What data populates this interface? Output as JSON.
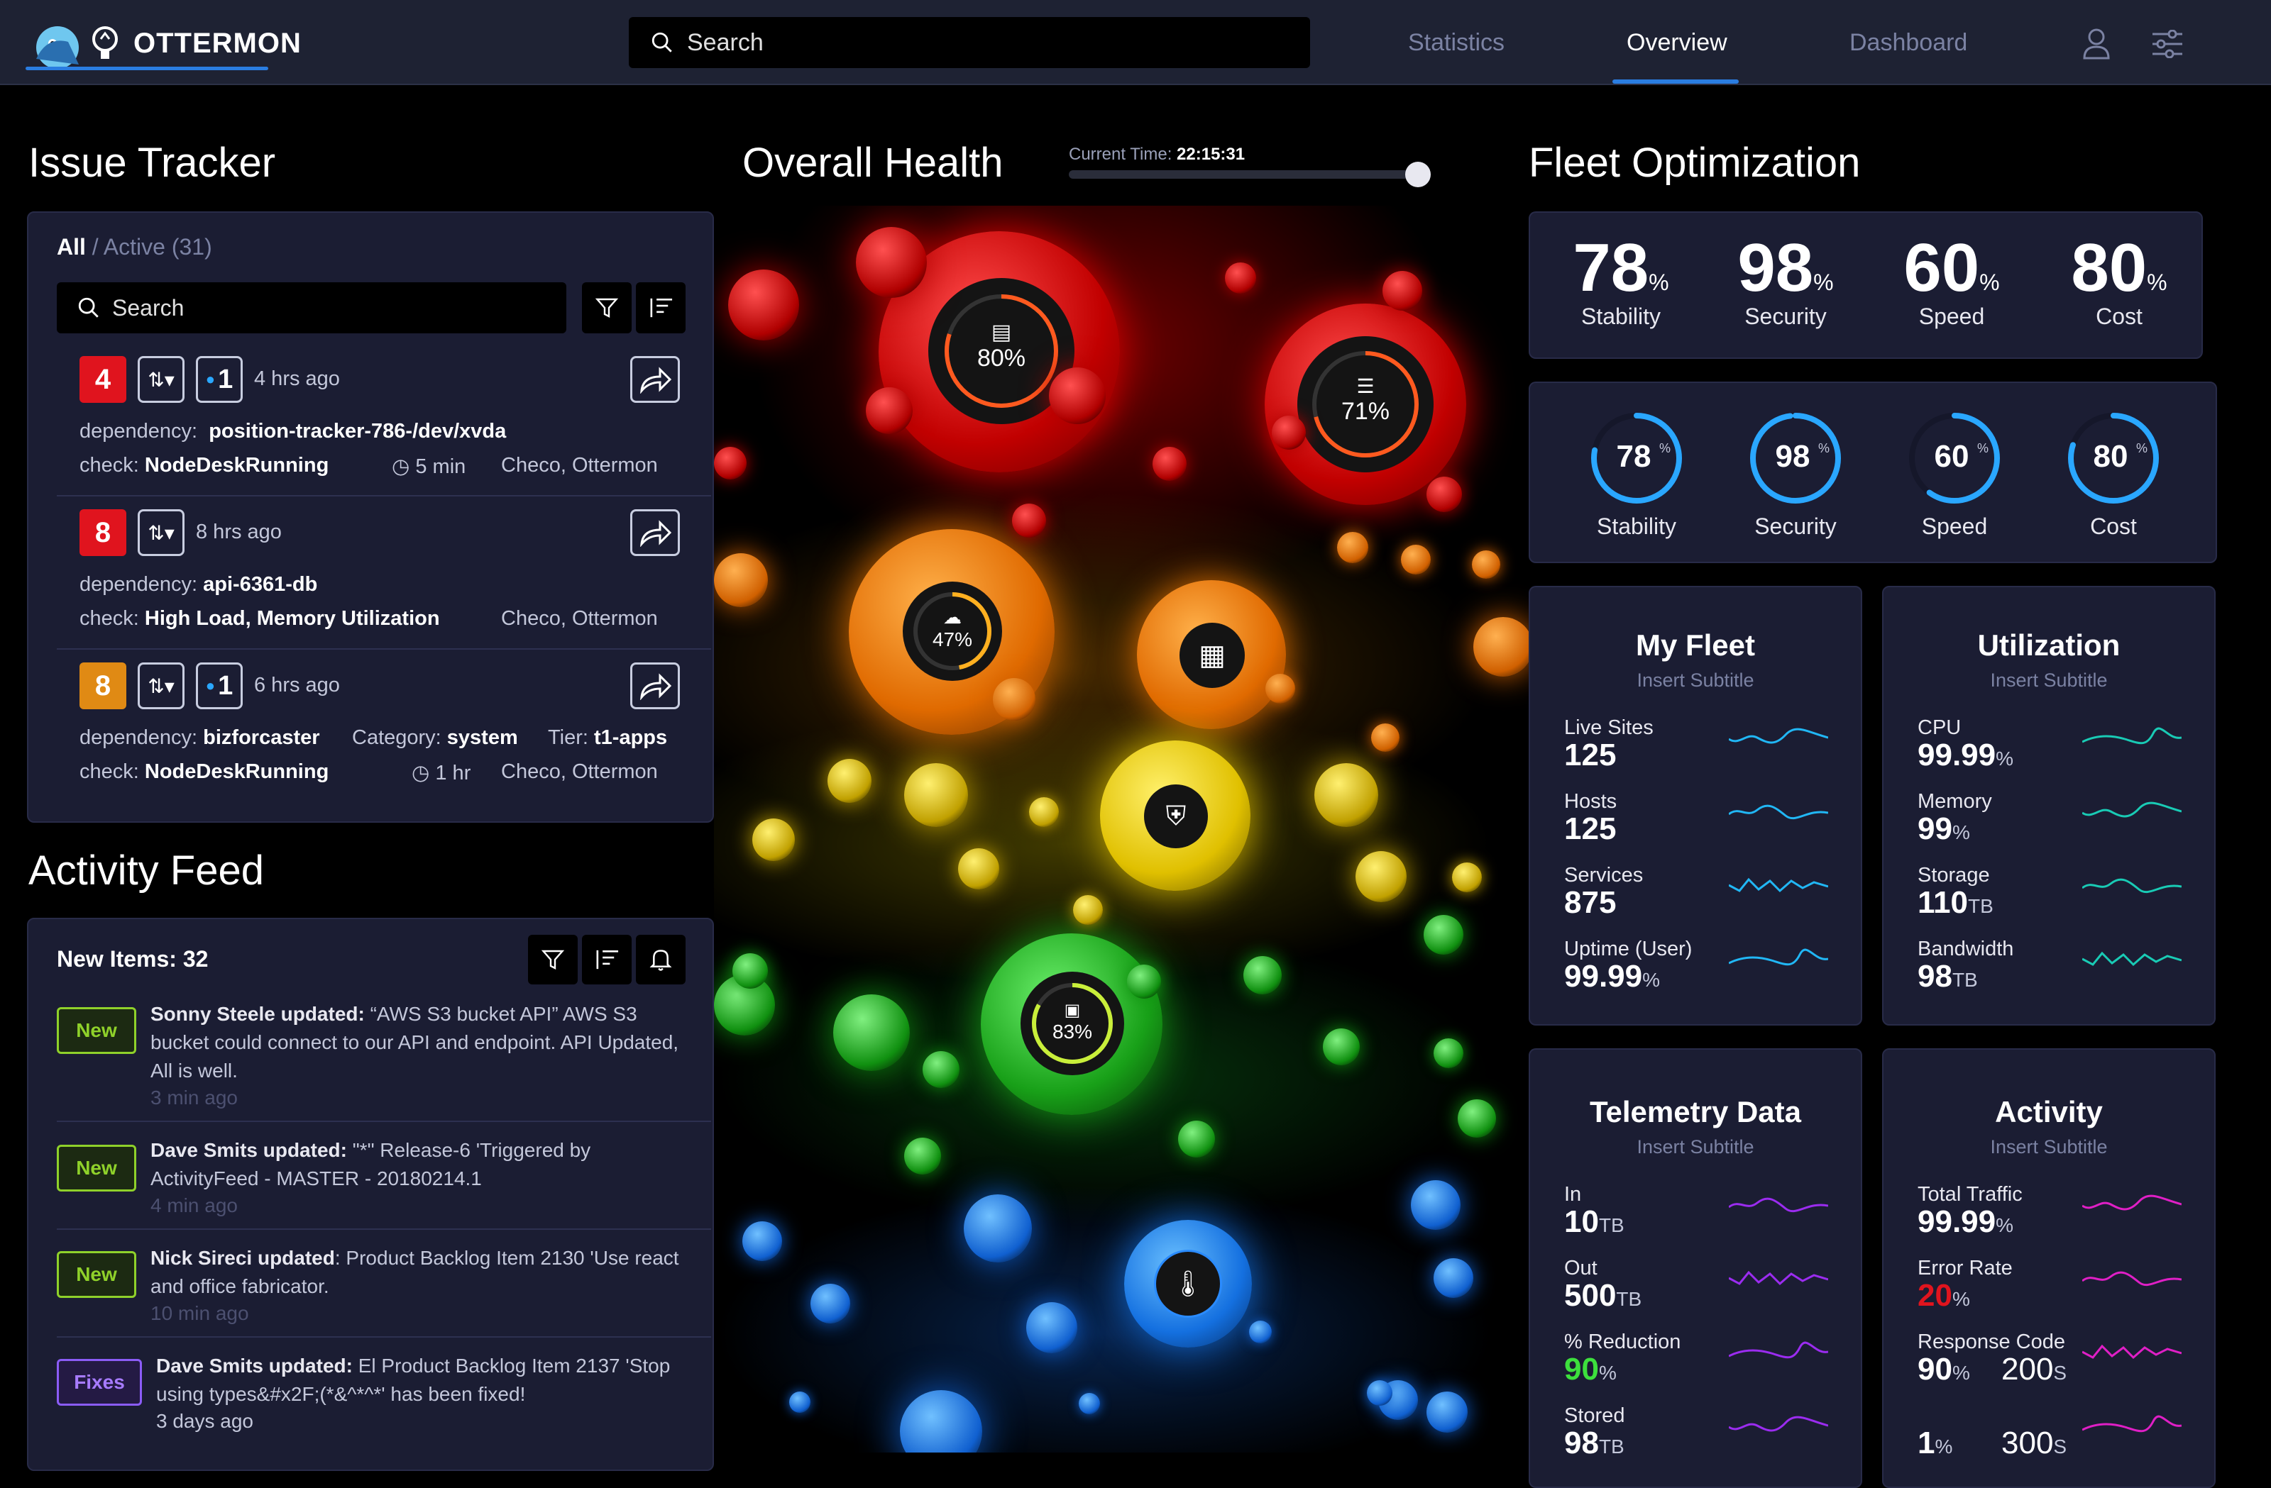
{
  "app": {
    "name": "OTTERMON"
  },
  "search": {
    "placeholder": "Search"
  },
  "nav": {
    "statistics": "Statistics",
    "overview": "Overview",
    "dashboard": "Dashboard"
  },
  "issue_tracker": {
    "title": "Issue Tracker",
    "filter_all": "All",
    "filter_sep": "/",
    "filter_active": "Active (31)",
    "search_placeholder": "Search",
    "issues": [
      {
        "severity": "4",
        "severity_color": "#e0141e",
        "count": "1",
        "time": "4 hrs ago",
        "dependency_label": "dependency:",
        "dependency": "position-tracker-786-/dev/xvda",
        "check_label": "check:",
        "check": "NodeDeskRunning",
        "duration": "5 min",
        "owners": "Checo, Ottermon"
      },
      {
        "severity": "8",
        "severity_color": "#e0141e",
        "time": "8 hrs ago",
        "dependency_label": "dependency:",
        "dependency": "api-6361-db",
        "check_label": "check:",
        "check": "High Load, Memory Utilization",
        "owners": "Checo, Ottermon"
      },
      {
        "severity": "8",
        "severity_color": "#e08a14",
        "count": "1",
        "time": "6 hrs ago",
        "dependency_label": "dependency:",
        "dependency": "bizforcaster",
        "category_label": "Category:",
        "category": "system",
        "tier_label": "Tier:",
        "tier": "t1-apps",
        "check_label": "check:",
        "check": "NodeDeskRunning",
        "duration": "1 hr",
        "owners": "Checo, Ottermon"
      }
    ]
  },
  "activity_feed": {
    "title": "Activity Feed",
    "new_items": "New Items: 32",
    "items": [
      {
        "tag": "New",
        "tag_color": "#8fd12a",
        "author": "Sonny Steele updated:",
        "text": " “AWS S3 bucket API” AWS S3 bucket could connect to our API and endpoint. API Updated, All is well.",
        "ago": "3 min ago"
      },
      {
        "tag": "New",
        "tag_color": "#8fd12a",
        "author": "Dave Smits updated:",
        "text": " \"*\" Release-6 'Triggered by ActivityFeed - MASTER - 20180214.1",
        "ago": "4 min ago"
      },
      {
        "tag": "New",
        "tag_color": "#8fd12a",
        "author": "Nick Sireci updated",
        "text": ": Product Backlog Item 2130 'Use react and office fabricator.",
        "ago": "10 min ago"
      },
      {
        "tag": "Fixes",
        "tag_color": "#8b5cf6",
        "author": "Dave Smits updated:",
        "text": " El Product Backlog Item 2137 'Stop using types&#x2F;(*&^*^*' has been fixed!",
        "ago": "3 days ago"
      }
    ]
  },
  "overall_health": {
    "title": "Overall Health",
    "time_label": "Current Time:",
    "time_value": "22:15:31",
    "time_slider_value": 1.0,
    "nodes": [
      {
        "icon": "server-icon",
        "percent": "80%",
        "value": 80,
        "color": "#ff5a1f"
      },
      {
        "icon": "database-icon",
        "percent": "71%",
        "value": 71,
        "color": "#ff5a1f"
      },
      {
        "icon": "cloud-icon",
        "percent": "47%",
        "value": 47,
        "color": "#ffb020"
      },
      {
        "icon": "apps-icon"
      },
      {
        "icon": "shield-lock-icon"
      },
      {
        "icon": "ux-icon",
        "percent": "83%",
        "value": 83,
        "color": "#c9ef3a"
      },
      {
        "icon": "thermometer-icon"
      }
    ]
  },
  "fleet": {
    "title": "Fleet Optimization",
    "stats": [
      {
        "value": "78",
        "unit": "%",
        "label": "Stability"
      },
      {
        "value": "98",
        "unit": "%",
        "label": "Security"
      },
      {
        "value": "60",
        "unit": "%",
        "label": "Speed"
      },
      {
        "value": "80",
        "unit": "%",
        "label": "Cost"
      }
    ],
    "rings": [
      {
        "value": "78",
        "unit": "%",
        "label": "Stability",
        "fraction": 0.78
      },
      {
        "value": "98",
        "unit": "%",
        "label": "Security",
        "fraction": 0.98
      },
      {
        "value": "60",
        "unit": "%",
        "label": "Speed",
        "fraction": 0.6
      },
      {
        "value": "80",
        "unit": "%",
        "label": "Cost",
        "fraction": 0.8
      }
    ],
    "accent": "#2aa7ff"
  },
  "cards": {
    "my_fleet": {
      "title": "My Fleet",
      "subtitle": "Insert Subtitle",
      "color": "#21b7f5",
      "metrics": [
        {
          "label": "Live Sites",
          "value": "125",
          "unit": ""
        },
        {
          "label": "Hosts",
          "value": "125",
          "unit": ""
        },
        {
          "label": "Services",
          "value": "875",
          "unit": ""
        },
        {
          "label": "Uptime (User)",
          "value": "99.99",
          "unit": "%"
        }
      ]
    },
    "utilization": {
      "title": "Utilization",
      "subtitle": "Insert Subtitle",
      "color": "#19cbb5",
      "metrics": [
        {
          "label": "CPU",
          "value": "99.99",
          "unit": "%"
        },
        {
          "label": "Memory",
          "value": "99",
          "unit": "%"
        },
        {
          "label": "Storage",
          "value": "110",
          "unit": "TB"
        },
        {
          "label": "Bandwidth",
          "value": "98",
          "unit": "TB"
        }
      ]
    },
    "telemetry": {
      "title": "Telemetry Data",
      "subtitle": "Insert Subtitle",
      "color": "#9b2cf0",
      "metrics": [
        {
          "label": "In",
          "value": "10",
          "unit": "TB"
        },
        {
          "label": "Out",
          "value": "500",
          "unit": "TB"
        },
        {
          "label": "% Reduction",
          "value": "90",
          "unit": "%",
          "value_color": "#3de03d"
        },
        {
          "label": "Stored",
          "value": "98",
          "unit": "TB"
        }
      ]
    },
    "activity": {
      "title": "Activity",
      "subtitle": "Insert Subtitle",
      "color": "#e01fc6",
      "metrics": [
        {
          "label": "Total Traffic",
          "value": "99.99",
          "unit": "%"
        },
        {
          "label": "Error Rate",
          "value": "20",
          "unit": "%",
          "value_color": "#e0141e"
        },
        {
          "label": "Response Code",
          "value": "90",
          "unit": "%",
          "value2": "200",
          "unit2": "S"
        },
        {
          "label": "",
          "value": "1",
          "unit": "%",
          "value2": "300",
          "unit2": "S"
        }
      ]
    }
  }
}
